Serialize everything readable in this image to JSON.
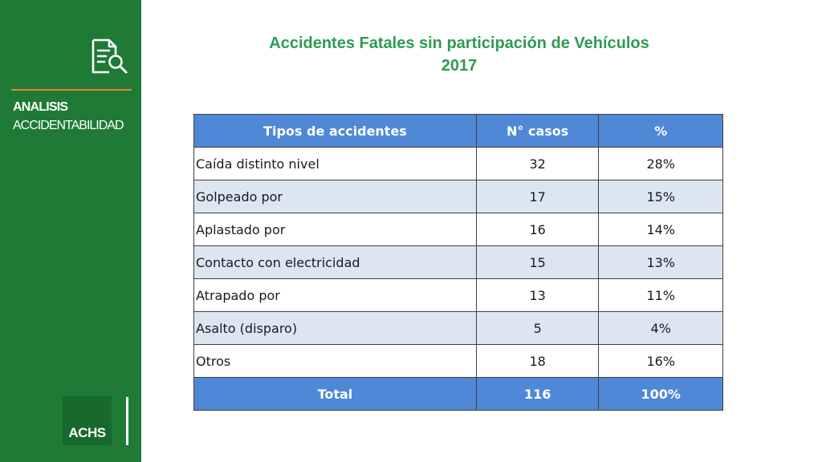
{
  "sidebar": {
    "section_title": "ANALISIS",
    "section_subtitle": "ACCIDENTABILIDAD",
    "logo": "ACHS",
    "icon": "document-search-icon",
    "colors": {
      "background": "#1e7a35",
      "divider": "#e08a2c",
      "logo_box": "#176a2c"
    }
  },
  "title": {
    "line1": "Accidentes Fatales sin participación de Vehículos",
    "line2": "2017",
    "color": "#2f9a52"
  },
  "table": {
    "headers": [
      "Tipos de accidentes",
      "N° casos",
      "%"
    ],
    "rows": [
      {
        "type": "Caída distinto nivel",
        "cases": "32",
        "pct": "28%"
      },
      {
        "type": "Golpeado por",
        "cases": "17",
        "pct": "15%"
      },
      {
        "type": "Aplastado por",
        "cases": "16",
        "pct": "14%"
      },
      {
        "type": "Contacto con electricidad",
        "cases": "15",
        "pct": "13%"
      },
      {
        "type": "Atrapado por",
        "cases": "13",
        "pct": "11%"
      },
      {
        "type": "Asalto (disparo)",
        "cases": "5",
        "pct": "4%"
      },
      {
        "type": "Otros",
        "cases": "18",
        "pct": "16%"
      }
    ],
    "total": {
      "label": "Total",
      "cases": "116",
      "pct": "100%"
    },
    "colors": {
      "header": "#4f88d6",
      "alt_row": "#dce6f2"
    }
  }
}
